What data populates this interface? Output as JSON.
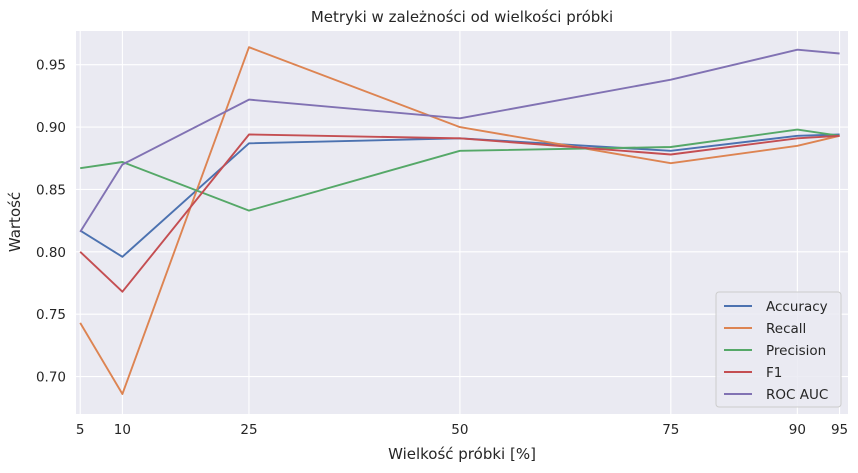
{
  "chart_data": {
    "type": "line",
    "title": "Metryki w zależności od wielkości próbki",
    "xlabel": "Wielkość próbki [%]",
    "ylabel": "Wartość",
    "x": [
      5,
      10,
      25,
      50,
      75,
      90,
      95
    ],
    "x_tick_labels": [
      "5",
      "10",
      "25",
      "50",
      "75",
      "90",
      "95"
    ],
    "xlim": [
      4.5,
      96.0
    ],
    "ylim": [
      0.67,
      0.977
    ],
    "y_ticks": [
      0.7,
      0.75,
      0.8,
      0.85,
      0.9,
      0.95
    ],
    "y_tick_labels": [
      "0.70",
      "0.75",
      "0.80",
      "0.85",
      "0.90",
      "0.95"
    ],
    "grid": true,
    "legend_position": "bottom-right",
    "series": [
      {
        "name": "Accuracy",
        "color": "#4c72b0",
        "values": [
          0.817,
          0.796,
          0.887,
          0.891,
          0.881,
          0.893,
          0.894
        ]
      },
      {
        "name": "Recall",
        "color": "#dd8452",
        "values": [
          0.743,
          0.686,
          0.964,
          0.9,
          0.871,
          0.885,
          0.893
        ]
      },
      {
        "name": "Precision",
        "color": "#55a868",
        "values": [
          0.867,
          0.872,
          0.833,
          0.881,
          0.884,
          0.898,
          0.893
        ]
      },
      {
        "name": "F1",
        "color": "#c44e52",
        "values": [
          0.8,
          0.768,
          0.894,
          0.891,
          0.878,
          0.891,
          0.893
        ]
      },
      {
        "name": "ROC AUC",
        "color": "#8172b3",
        "values": [
          0.816,
          0.87,
          0.922,
          0.907,
          0.938,
          0.962,
          0.959
        ]
      }
    ]
  }
}
